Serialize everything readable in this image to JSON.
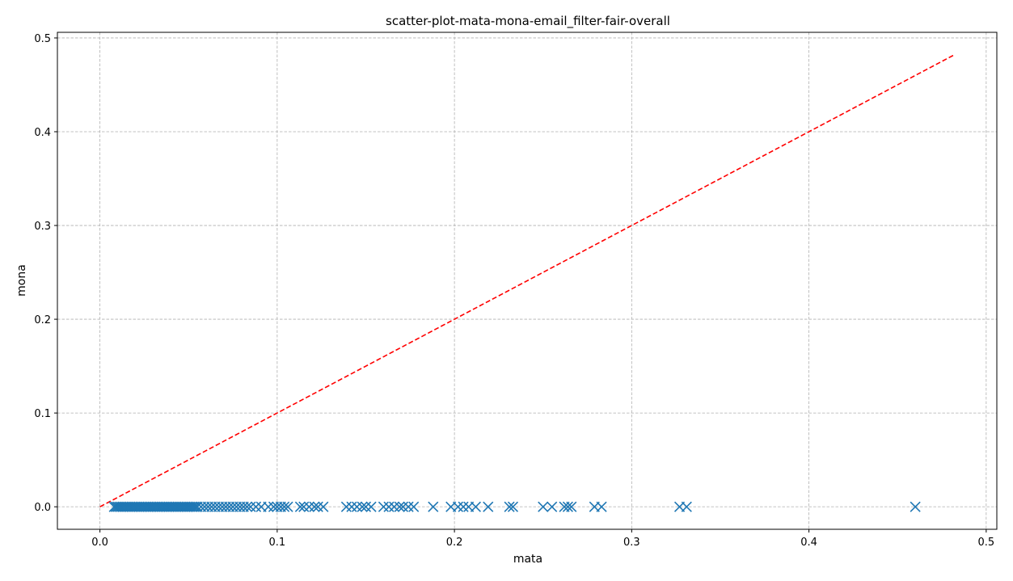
{
  "chart_data": {
    "type": "scatter",
    "title": "scatter-plot-mata-mona-email_filter-fair-overall",
    "xlabel": "mata",
    "ylabel": "mona",
    "xlim": [
      -0.024,
      0.506
    ],
    "ylim": [
      -0.024,
      0.506
    ],
    "xticks": [
      0.0,
      0.1,
      0.2,
      0.3,
      0.4,
      0.5
    ],
    "yticks": [
      0.0,
      0.1,
      0.2,
      0.3,
      0.4,
      0.5
    ],
    "xtick_labels": [
      "0.0",
      "0.1",
      "0.2",
      "0.3",
      "0.4",
      "0.5"
    ],
    "ytick_labels": [
      "0.0",
      "0.1",
      "0.2",
      "0.3",
      "0.4",
      "0.5"
    ],
    "grid": true,
    "marker": "x",
    "marker_color": "#1f77b4",
    "reference_line": {
      "x": [
        0.0,
        0.482
      ],
      "y": [
        0.0,
        0.482
      ],
      "style": "dashed",
      "color": "#ff0000"
    },
    "series": [
      {
        "marker": "x",
        "color": "#1f77b4",
        "x": [
          0.008,
          0.009,
          0.01,
          0.011,
          0.012,
          0.013,
          0.014,
          0.015,
          0.016,
          0.017,
          0.018,
          0.019,
          0.02,
          0.021,
          0.022,
          0.023,
          0.024,
          0.025,
          0.026,
          0.027,
          0.028,
          0.029,
          0.03,
          0.031,
          0.032,
          0.033,
          0.034,
          0.035,
          0.036,
          0.037,
          0.038,
          0.039,
          0.04,
          0.041,
          0.042,
          0.043,
          0.044,
          0.045,
          0.046,
          0.047,
          0.048,
          0.049,
          0.05,
          0.051,
          0.052,
          0.053,
          0.054,
          0.055,
          0.057,
          0.059,
          0.061,
          0.063,
          0.065,
          0.067,
          0.069,
          0.071,
          0.073,
          0.075,
          0.077,
          0.079,
          0.081,
          0.083,
          0.085,
          0.088,
          0.091,
          0.095,
          0.098,
          0.1,
          0.102,
          0.104,
          0.106,
          0.113,
          0.115,
          0.118,
          0.121,
          0.123,
          0.126,
          0.139,
          0.142,
          0.145,
          0.148,
          0.15,
          0.153,
          0.16,
          0.163,
          0.166,
          0.169,
          0.171,
          0.174,
          0.177,
          0.188,
          0.198,
          0.202,
          0.205,
          0.208,
          0.212,
          0.219,
          0.231,
          0.233,
          0.25,
          0.255,
          0.262,
          0.264,
          0.266,
          0.279,
          0.283,
          0.327,
          0.331,
          0.46
        ],
        "y": [
          0.0,
          0.0,
          0.0,
          0.0,
          0.0,
          0.0,
          0.0,
          0.0,
          0.0,
          0.0,
          0.0,
          0.0,
          0.0,
          0.0,
          0.0,
          0.0,
          0.0,
          0.0,
          0.0,
          0.0,
          0.0,
          0.0,
          0.0,
          0.0,
          0.0,
          0.0,
          0.0,
          0.0,
          0.0,
          0.0,
          0.0,
          0.0,
          0.0,
          0.0,
          0.0,
          0.0,
          0.0,
          0.0,
          0.0,
          0.0,
          0.0,
          0.0,
          0.0,
          0.0,
          0.0,
          0.0,
          0.0,
          0.0,
          0.0,
          0.0,
          0.0,
          0.0,
          0.0,
          0.0,
          0.0,
          0.0,
          0.0,
          0.0,
          0.0,
          0.0,
          0.0,
          0.0,
          0.0,
          0.0,
          0.0,
          0.0,
          0.0,
          0.0,
          0.0,
          0.0,
          0.0,
          0.0,
          0.0,
          0.0,
          0.0,
          0.0,
          0.0,
          0.0,
          0.0,
          0.0,
          0.0,
          0.0,
          0.0,
          0.0,
          0.0,
          0.0,
          0.0,
          0.0,
          0.0,
          0.0,
          0.0,
          0.0,
          0.0,
          0.0,
          0.0,
          0.0,
          0.0,
          0.0,
          0.0,
          0.0,
          0.0,
          0.0,
          0.0,
          0.0,
          0.0,
          0.0,
          0.0,
          0.0,
          0.0
        ]
      }
    ]
  }
}
